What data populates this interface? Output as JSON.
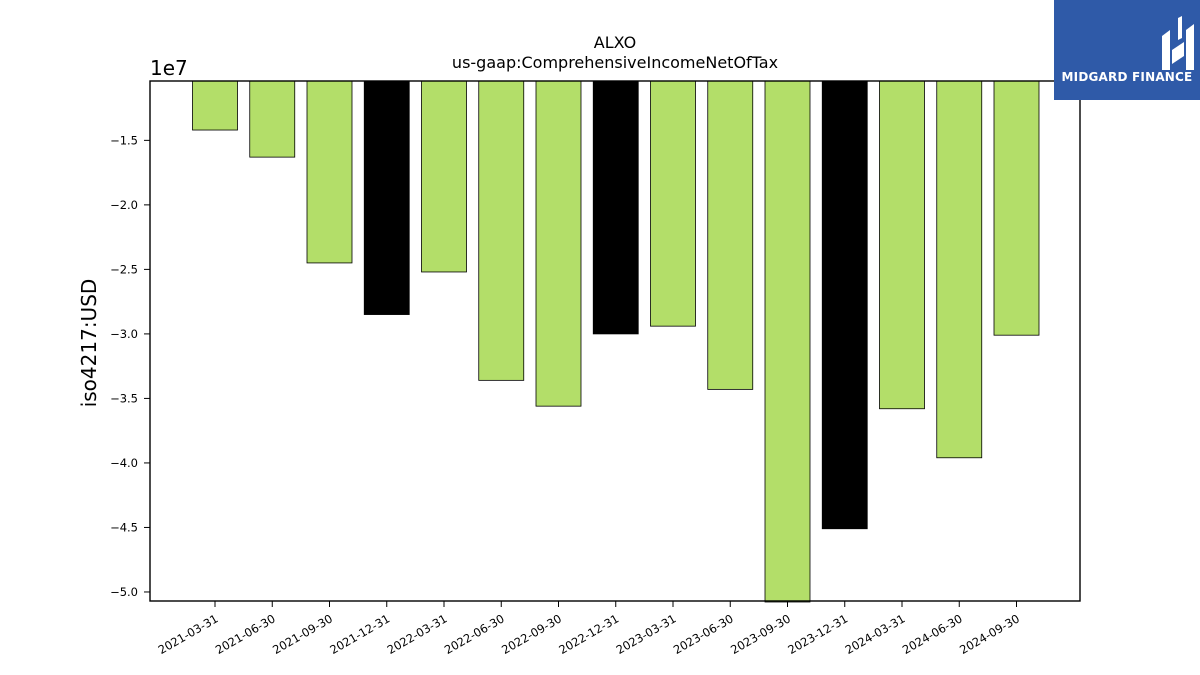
{
  "chart_data": {
    "type": "bar",
    "title": "ALXO",
    "subtitle": "us-gaap:ComprehensiveIncomeNetOfTax",
    "ylabel": "iso4217:USD",
    "xlabel": "",
    "y_offset_label": "1e7",
    "ylim": [
      -50.7,
      -10.4
    ],
    "y_ticks": [
      -15,
      -20,
      -25,
      -30,
      -35,
      -40,
      -45,
      -50
    ],
    "y_tick_labels": [
      "−1.5",
      "−2.0",
      "−2.5",
      "−3.0",
      "−3.5",
      "−4.0",
      "−4.5",
      "−5.0"
    ],
    "grid": false,
    "legend": "none",
    "categories": [
      "2021-03-31",
      "2021-06-30",
      "2021-09-30",
      "2021-12-31",
      "2022-03-31",
      "2022-06-30",
      "2022-09-30",
      "2022-12-31",
      "2023-03-31",
      "2023-06-30",
      "2023-09-30",
      "2023-12-31",
      "2024-03-31",
      "2024-06-30",
      "2024-09-30"
    ],
    "values": [
      -14.2,
      -16.3,
      -24.5,
      -28.5,
      -25.2,
      -33.6,
      -35.6,
      -30.0,
      -29.4,
      -34.3,
      -51.0,
      -45.1,
      -35.8,
      -39.6,
      -30.1
    ],
    "value_unit": "millions USD",
    "bar_colors": [
      "#b3de69",
      "#b3de69",
      "#b3de69",
      "#000000",
      "#b3de69",
      "#b3de69",
      "#b3de69",
      "#000000",
      "#b3de69",
      "#b3de69",
      "#b3de69",
      "#000000",
      "#b3de69",
      "#b3de69",
      "#b3de69"
    ]
  },
  "logo": {
    "text": "MIDGARD FINANCE",
    "icon": "midgard-logo-icon",
    "background": "#2f5aa8"
  }
}
